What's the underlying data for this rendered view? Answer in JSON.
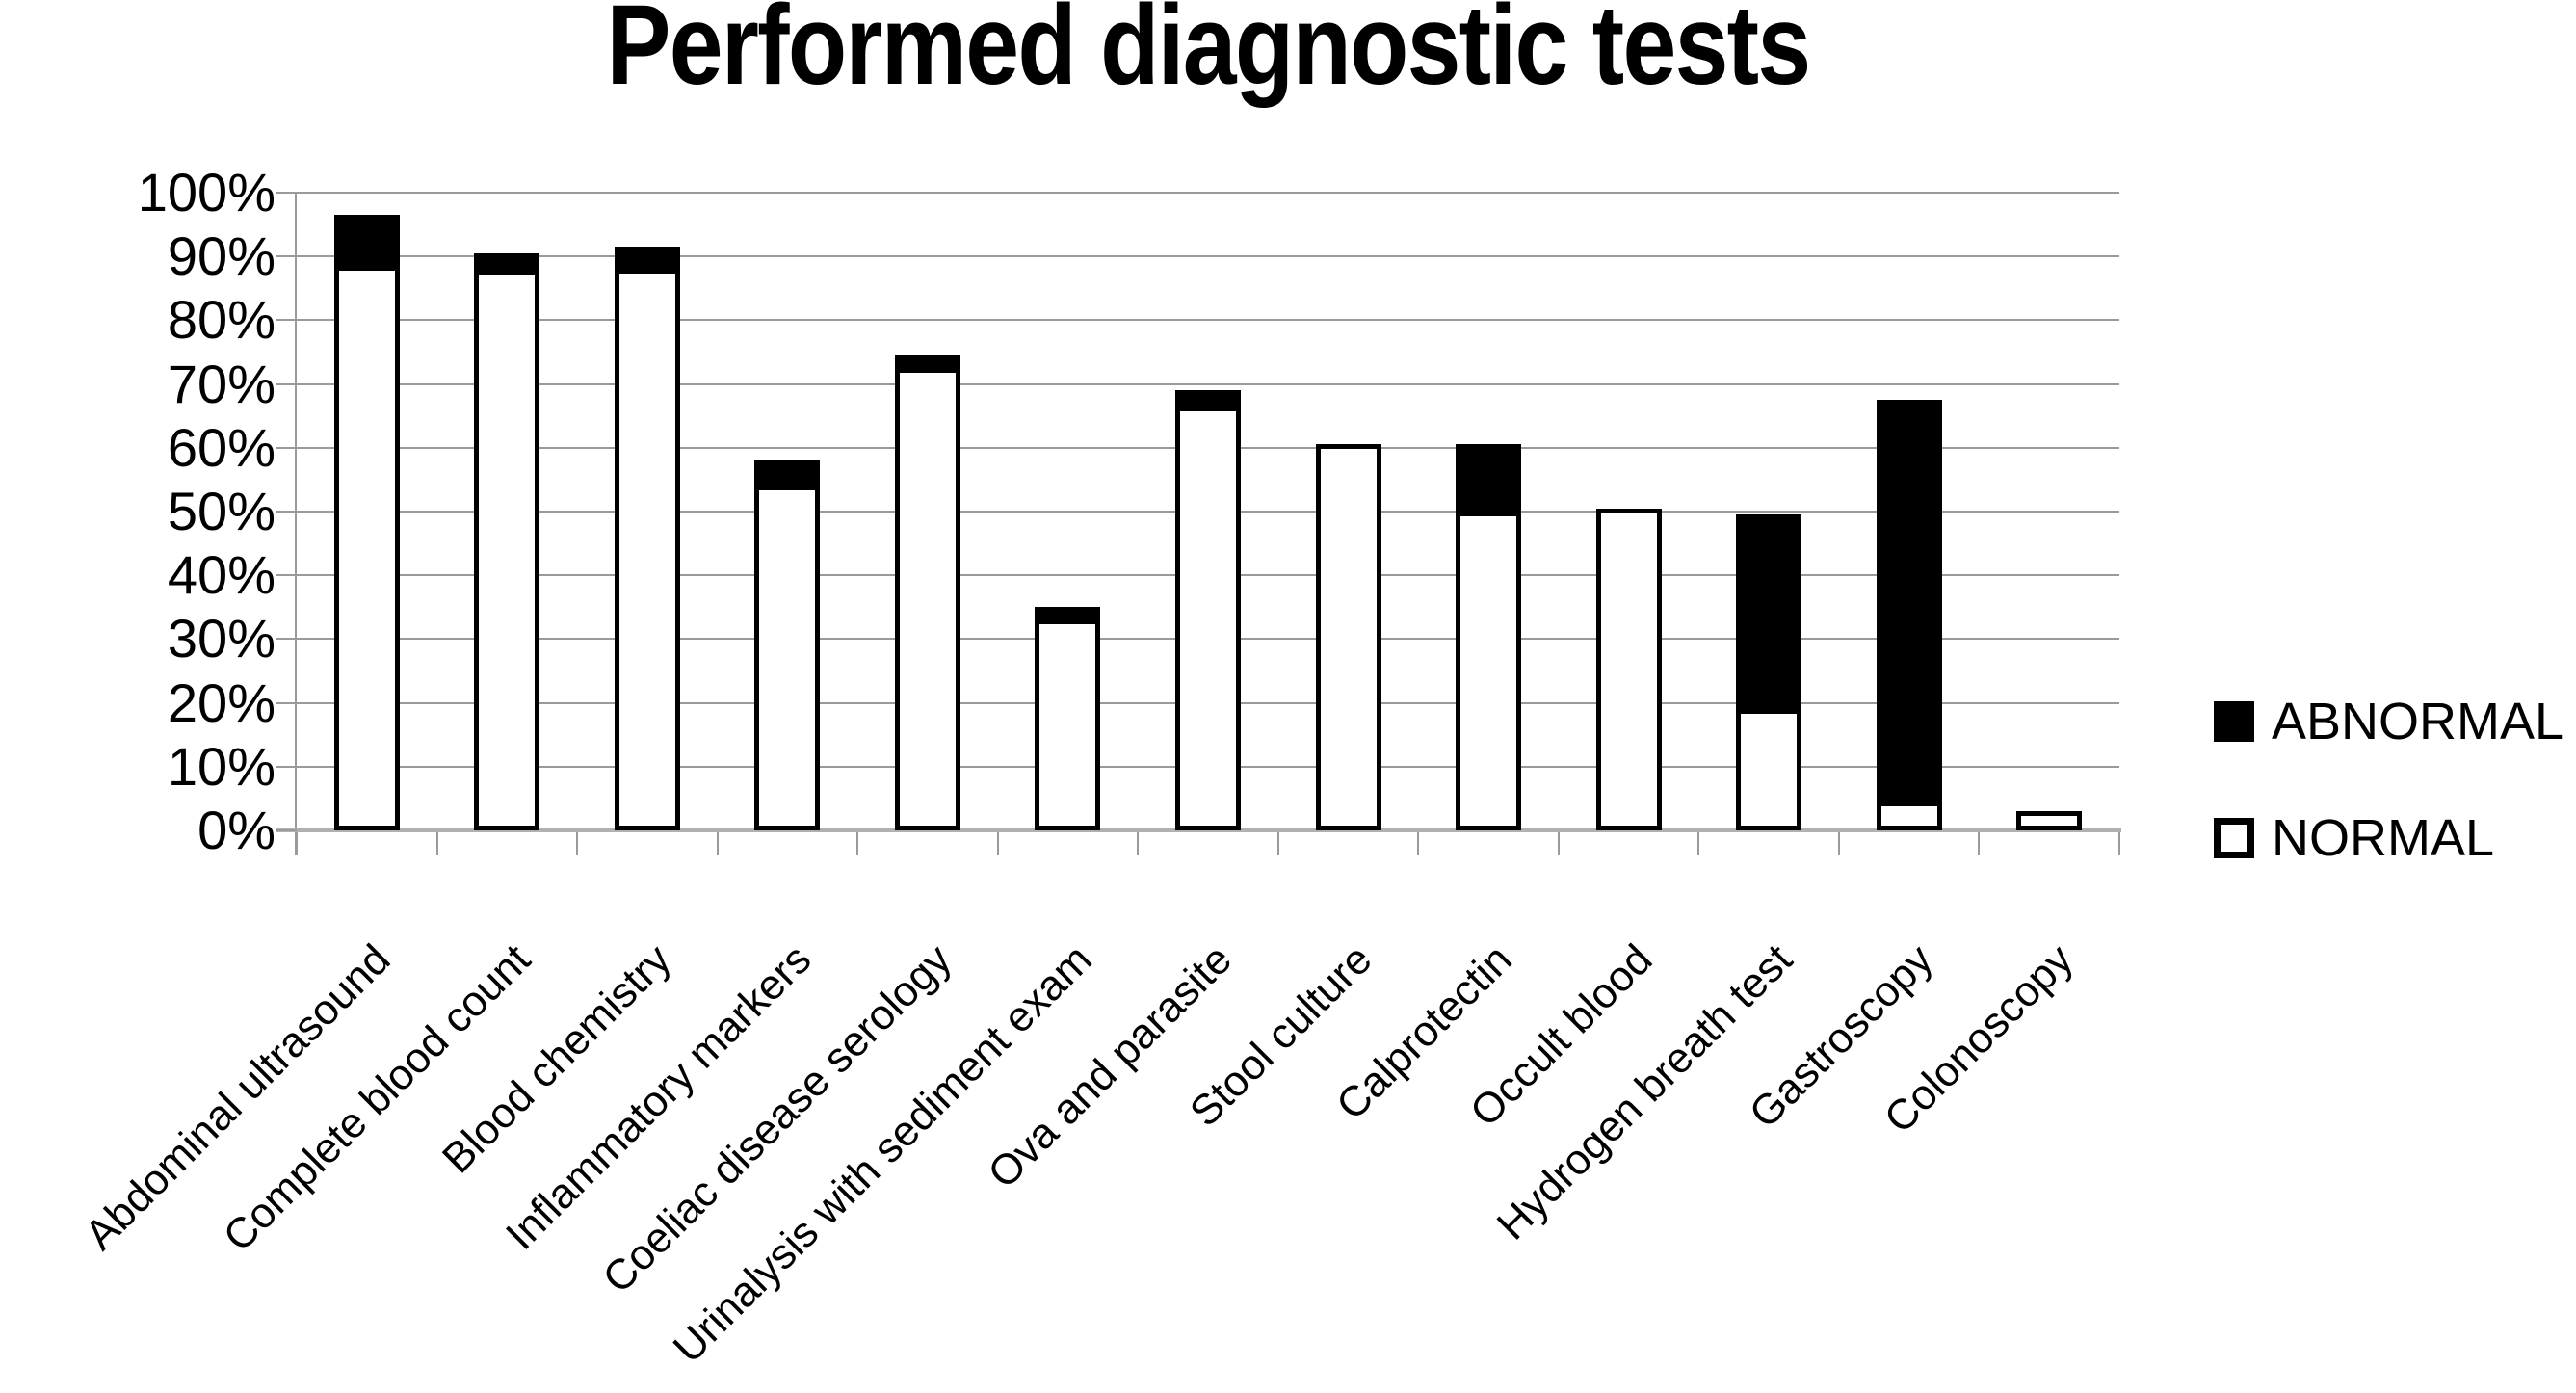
{
  "title": "Performed diagnostic tests",
  "legend": {
    "abnormal_label": "ABNORMAL",
    "normal_label": "NORMAL"
  },
  "colors": {
    "abnormal": "#000000",
    "normal": "#ffffff",
    "bar_border": "#000000",
    "gridline": "#9a9a9a",
    "axis": "#b0b0b0",
    "text": "#000000",
    "background": "#ffffff"
  },
  "y_axis": {
    "min": 0,
    "max": 100,
    "step": 10,
    "tick_labels": [
      "100%",
      "90%",
      "80%",
      "70%",
      "60%",
      "50%",
      "40%",
      "30%",
      "20%",
      "10%",
      "0%"
    ]
  },
  "chart_data": {
    "type": "bar",
    "stacked": true,
    "title": "Performed diagnostic tests",
    "xlabel": "",
    "ylabel": "",
    "ylim": [
      0,
      100
    ],
    "grid": true,
    "legend_position": "right",
    "categories": [
      "Abdominal ultrasound",
      "Complete blood count",
      "Blood chemistry",
      "Inflammatory markers",
      "Coeliac disease serology",
      "Urinalysis with sediment exam",
      "Ova and parasite",
      "Stool culture",
      "Calprotectin",
      "Occult blood",
      "Hydrogen breath test",
      "Gastroscopy",
      "Colonoscopy"
    ],
    "series": [
      {
        "name": "NORMAL",
        "color": "#ffffff",
        "values": [
          88.5,
          88,
          88,
          54,
          72.5,
          33,
          66.5,
          60.5,
          50,
          50.5,
          19,
          4.5,
          3
        ]
      },
      {
        "name": "ABNORMAL",
        "color": "#000000",
        "values": [
          8,
          2.5,
          3.5,
          4,
          2,
          2,
          2.5,
          0,
          10.5,
          0,
          30.5,
          63,
          0
        ]
      }
    ]
  }
}
